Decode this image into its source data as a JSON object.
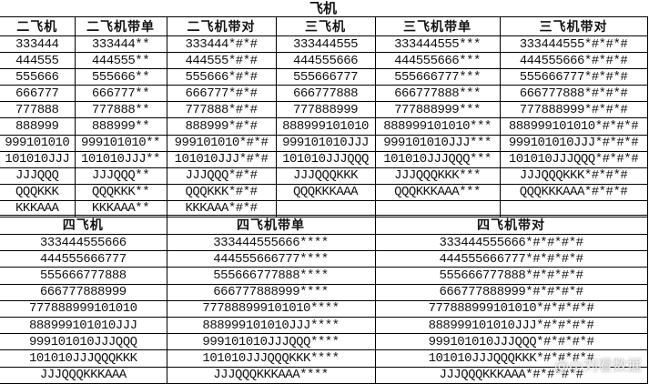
{
  "title": "飞机",
  "top": {
    "headers": [
      "二飞机",
      "二飞机带单",
      "二飞机带对",
      "三飞机",
      "三飞机带单",
      "三飞机带对"
    ],
    "rows": [
      [
        "333444",
        "333444**",
        "333444*#*#",
        "333444555",
        "333444555***",
        "333444555*#*#*#"
      ],
      [
        "444555",
        "444555**",
        "444555*#*#",
        "444555666",
        "444555666***",
        "444555666*#*#*#"
      ],
      [
        "555666",
        "555666**",
        "555666*#*#",
        "555666777",
        "555666777***",
        "555666777*#*#*#"
      ],
      [
        "666777",
        "666777**",
        "666777*#*#",
        "666777888",
        "666777888***",
        "666777888*#*#*#"
      ],
      [
        "777888",
        "777888**",
        "777888*#*#",
        "777888999",
        "777888999***",
        "777888999*#*#*#"
      ],
      [
        "888999",
        "888999**",
        "888999*#*#",
        "888999101010",
        "888999101010***",
        "888999101010*#*#*#"
      ],
      [
        "999101010",
        "999101010**",
        "999101010*#*#",
        "999101010JJJ",
        "999101010JJJ***",
        "999101010JJJ*#*#*#"
      ],
      [
        "101010JJJ",
        "101010JJJ**",
        "101010JJJ*#*#",
        "101010JJJQQQ",
        "101010JJJQQQ***",
        "101010JJJQQQ*#*#*#"
      ],
      [
        "JJJQQQ",
        "JJJQQQ**",
        "JJJQQQ*#*#",
        "JJJQQQKKK",
        "JJJQQQKKK***",
        "JJJQQQKKK*#*#*#"
      ],
      [
        "QQQKKK",
        "QQQKKK**",
        "QQQKKK*#*#",
        "QQQKKKAAA",
        "QQQKKKAAA***",
        "QQQKKKAAA*#*#*#"
      ],
      [
        "KKKAAA",
        "KKKAAA**",
        "KKKAAA*#*#",
        "",
        "",
        ""
      ]
    ]
  },
  "bottom": {
    "headers": [
      "四飞机",
      "四飞机带单",
      "四飞机带对"
    ],
    "rows": [
      [
        "333444555666",
        "333444555666****",
        "333444555666*#*#*#*#"
      ],
      [
        "444555666777",
        "444555666777****",
        "444555666777*#*#*#*#"
      ],
      [
        "555666777888",
        "555666777888****",
        "555666777888*#*#*#*#"
      ],
      [
        "666777888999",
        "666777888999****",
        "666777888999*#*#*#*#"
      ],
      [
        "777888999101010",
        "777888999101010****",
        "777888999101010*#*#*#*#"
      ],
      [
        "888999101010JJJ",
        "888999101010JJJ****",
        "888999101010JJJ*#*#*#*#"
      ],
      [
        "999101010JJJQQQ",
        "999101010JJJQQQ****",
        "999101010JJJQQQ*#*#*#*#"
      ],
      [
        "101010JJJQQQKKK",
        "101010JJJQQQKKK****",
        "101010JJJQQQKKK*#*#*#*#"
      ],
      [
        "JJJQQQKKKAAA",
        "JJJQQQKKKAAA****",
        "JJJQQQKKKAAA*#*#*#*#"
      ]
    ]
  },
  "watermark": "@小刘看数据"
}
